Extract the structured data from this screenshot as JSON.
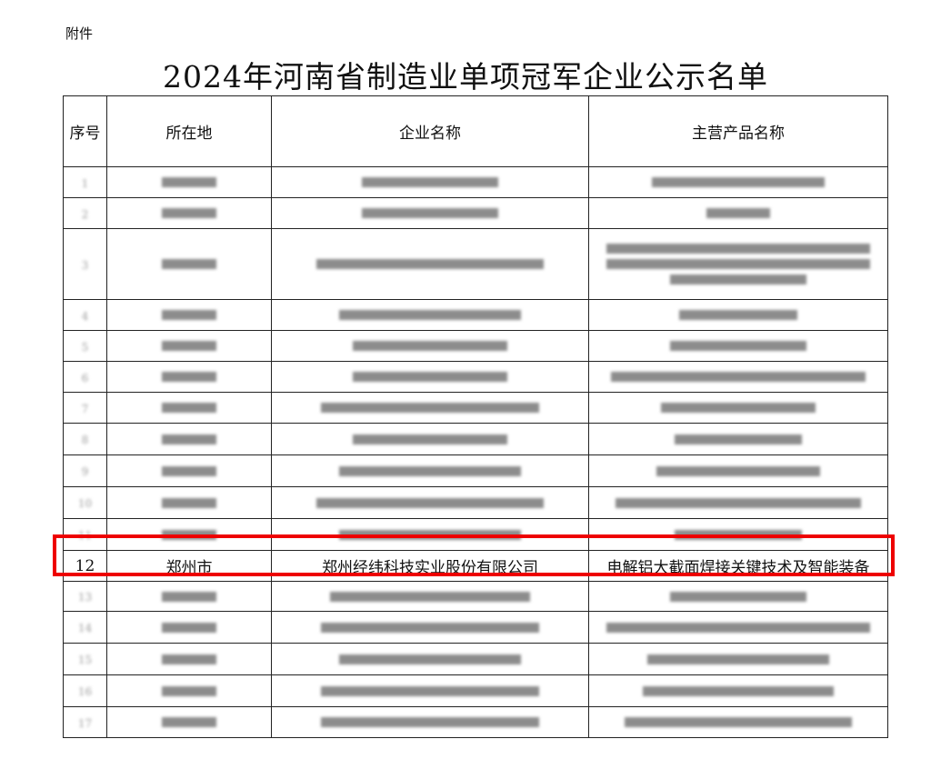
{
  "attachment_label": "附件",
  "title": "2024年河南省制造业单项冠军企业公示名单",
  "table": {
    "headers": [
      "序号",
      "所在地",
      "企业名称",
      "主营产品名称"
    ],
    "blurred_row_numbers": [
      "1",
      "2",
      "3",
      "4",
      "5",
      "6",
      "7",
      "8",
      "9",
      "10",
      "11",
      "13",
      "14",
      "15",
      "16",
      "17"
    ],
    "highlighted_row": {
      "number": "12",
      "location": "郑州市",
      "company": "郑州经纬科技实业股份有限公司",
      "product": "电解铝大截面焊接关键技术及智能装备"
    }
  },
  "highlight_color": "#e00000"
}
